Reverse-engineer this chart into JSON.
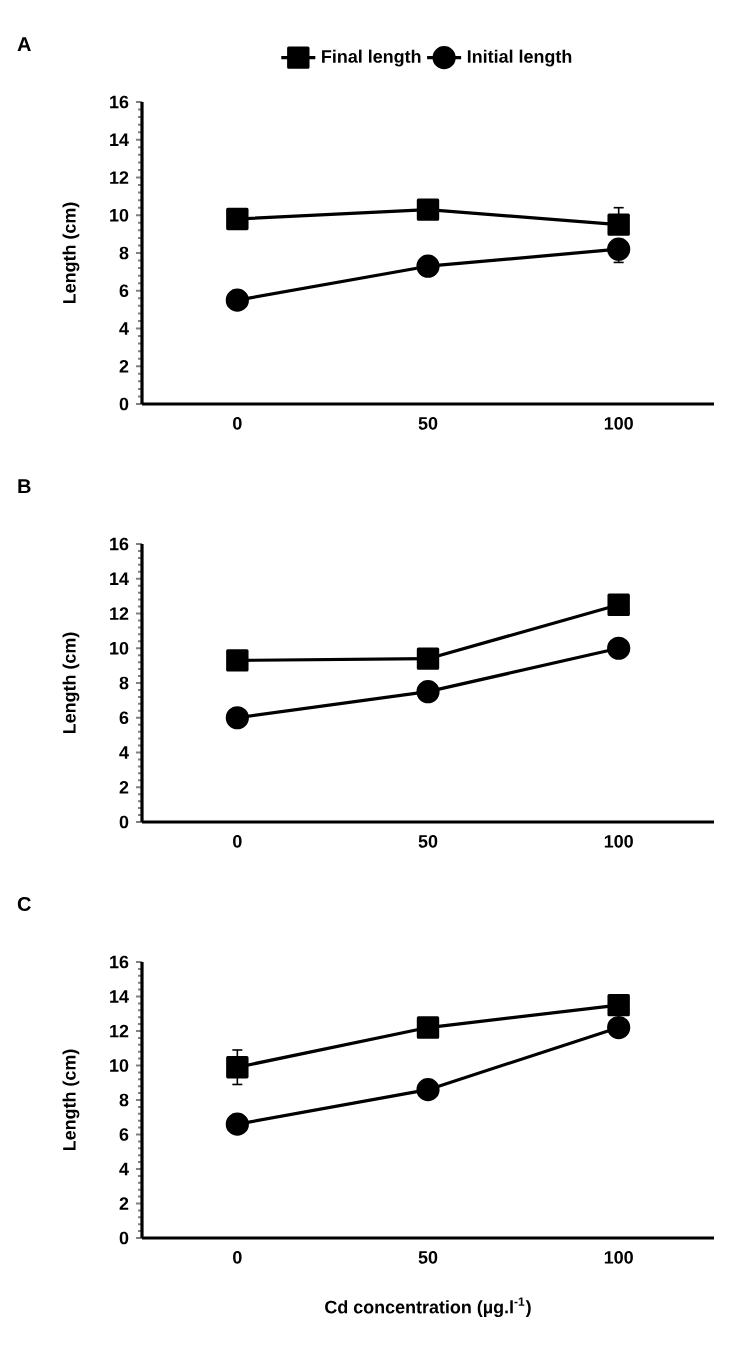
{
  "chart_data": [
    {
      "type": "line",
      "title": "A",
      "ylabel": "Length (cm)",
      "x": [
        0,
        50,
        100
      ],
      "xlim": [
        -25,
        125
      ],
      "xticks": [
        0,
        50,
        100
      ],
      "ylim": [
        0,
        16
      ],
      "yticks": [
        0,
        2,
        4,
        6,
        8,
        10,
        12,
        14,
        16
      ],
      "legend": "top",
      "series": [
        {
          "name": "Final length",
          "color": "#000000",
          "marker": "square",
          "values": [
            9.8,
            10.3,
            9.5
          ],
          "errors": [
            null,
            null,
            [
              9.5,
              10.4
            ]
          ]
        },
        {
          "name": "Initial length",
          "color": "#000000",
          "marker": "circle",
          "values": [
            5.5,
            7.3,
            8.2
          ],
          "errors": [
            null,
            null,
            [
              7.5,
              8.2
            ]
          ]
        }
      ]
    },
    {
      "type": "line",
      "title": "B",
      "ylabel": "Length (cm)",
      "x": [
        0,
        50,
        100
      ],
      "xlim": [
        -25,
        125
      ],
      "xticks": [
        0,
        50,
        100
      ],
      "ylim": [
        0,
        16
      ],
      "yticks": [
        0,
        2,
        4,
        6,
        8,
        10,
        12,
        14,
        16
      ],
      "series": [
        {
          "color": "#000000",
          "marker": "square",
          "values": [
            9.3,
            9.4,
            12.5
          ]
        },
        {
          "color": "#000000",
          "marker": "circle",
          "values": [
            6.0,
            7.5,
            10.0
          ]
        }
      ]
    },
    {
      "type": "line",
      "title": "C",
      "ylabel": "Length (cm)",
      "xlabel": "Cd concentration (µg.l$^{-1}$)",
      "x": [
        0,
        50,
        100
      ],
      "xlim": [
        -25,
        125
      ],
      "xticks": [
        0,
        50,
        100
      ],
      "ylim": [
        0,
        16
      ],
      "yticks": [
        0,
        2,
        4,
        6,
        8,
        10,
        12,
        14,
        16
      ],
      "series": [
        {
          "color": "#000000",
          "marker": "square",
          "values": [
            9.9,
            12.2,
            13.5
          ],
          "errors": [
            1.0,
            null,
            null
          ]
        },
        {
          "color": "#000000",
          "marker": "circle",
          "values": [
            6.6,
            8.6,
            12.2
          ]
        }
      ]
    }
  ]
}
